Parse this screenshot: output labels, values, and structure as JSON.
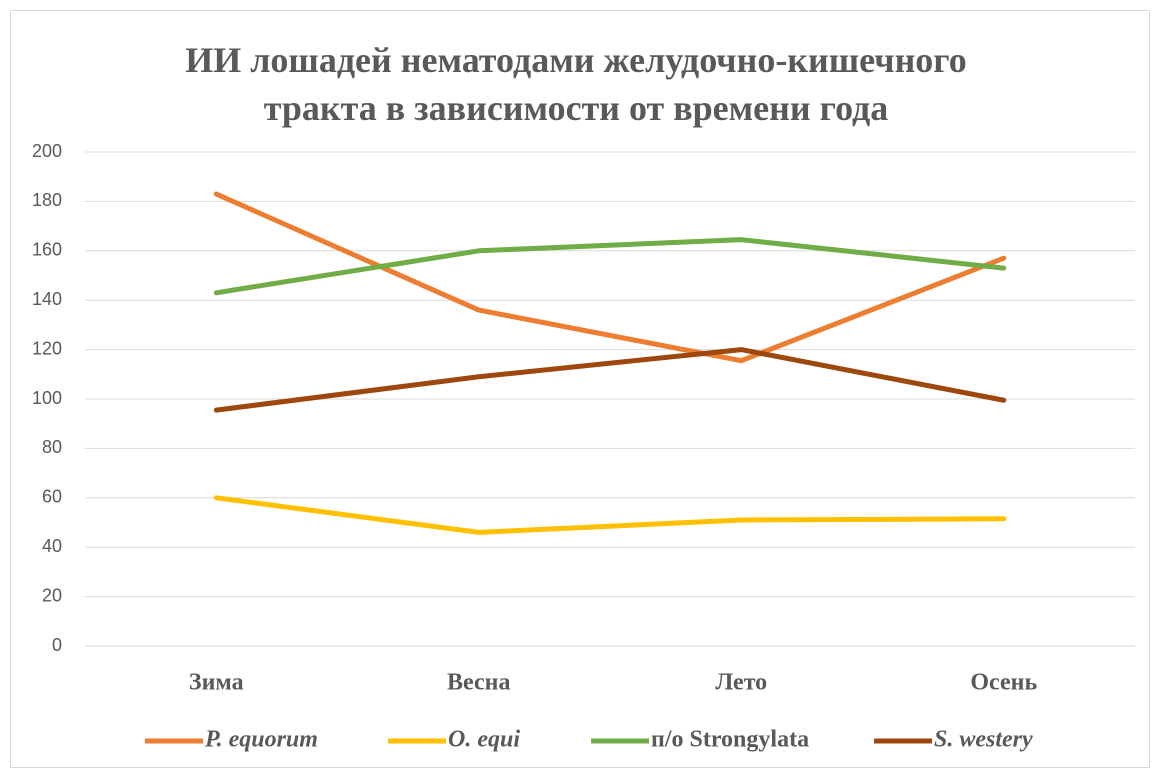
{
  "chart_data": {
    "type": "line",
    "title": "ИИ лошадей нематодами желудочно-кишечного тракта в зависимости от времени года",
    "categories": [
      "Зима",
      "Весна",
      "Лето",
      "Осень"
    ],
    "series": [
      {
        "name": "P. equorum",
        "color": "#ed7d31",
        "values": [
          183,
          136,
          115.5,
          157
        ]
      },
      {
        "name": "O. equi",
        "color": "#ffc000",
        "values": [
          60,
          46,
          51,
          51.5
        ]
      },
      {
        "name": "п/o Strongylata",
        "color": "#70ad47",
        "values": [
          143,
          160,
          164.5,
          153
        ]
      },
      {
        "name": "S. westery",
        "color": "#9e480e",
        "values": [
          95.5,
          109,
          120,
          99.5
        ]
      }
    ],
    "ylim": [
      0,
      200
    ],
    "yticks": [
      0,
      20,
      40,
      60,
      80,
      100,
      120,
      140,
      160,
      180,
      200
    ],
    "grid": true,
    "legend": "bottom"
  }
}
